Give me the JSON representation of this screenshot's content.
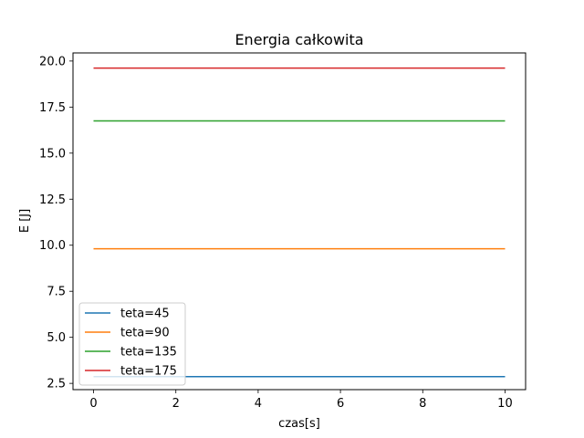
{
  "chart_data": {
    "type": "line",
    "title": "Energia całkowita",
    "xlabel": "czas[s]",
    "ylabel": "E [J]",
    "xlim": [
      -0.5,
      10.5
    ],
    "ylim": [
      2.16,
      20.44
    ],
    "xticks": [
      0,
      2,
      4,
      6,
      8,
      10
    ],
    "xtick_labels": [
      "0",
      "2",
      "4",
      "6",
      "8",
      "10"
    ],
    "yticks": [
      2.5,
      5.0,
      7.5,
      10.0,
      12.5,
      15.0,
      17.5,
      20.0
    ],
    "ytick_labels": [
      "2.5",
      "5.0",
      "7.5",
      "10.0",
      "12.5",
      "15.0",
      "17.5",
      "20.0"
    ],
    "grid": false,
    "legend_position": "lower-left",
    "series": [
      {
        "name": "teta=45",
        "color": "#1f77b4",
        "x": [
          0,
          10
        ],
        "values": [
          2.87,
          2.87
        ]
      },
      {
        "name": "teta=90",
        "color": "#ff7f0e",
        "x": [
          0,
          10
        ],
        "values": [
          9.81,
          9.81
        ]
      },
      {
        "name": "teta=135",
        "color": "#2ca02c",
        "x": [
          0,
          10
        ],
        "values": [
          16.75,
          16.75
        ]
      },
      {
        "name": "teta=175",
        "color": "#d62728",
        "x": [
          0,
          10
        ],
        "values": [
          19.62,
          19.62
        ]
      }
    ]
  }
}
